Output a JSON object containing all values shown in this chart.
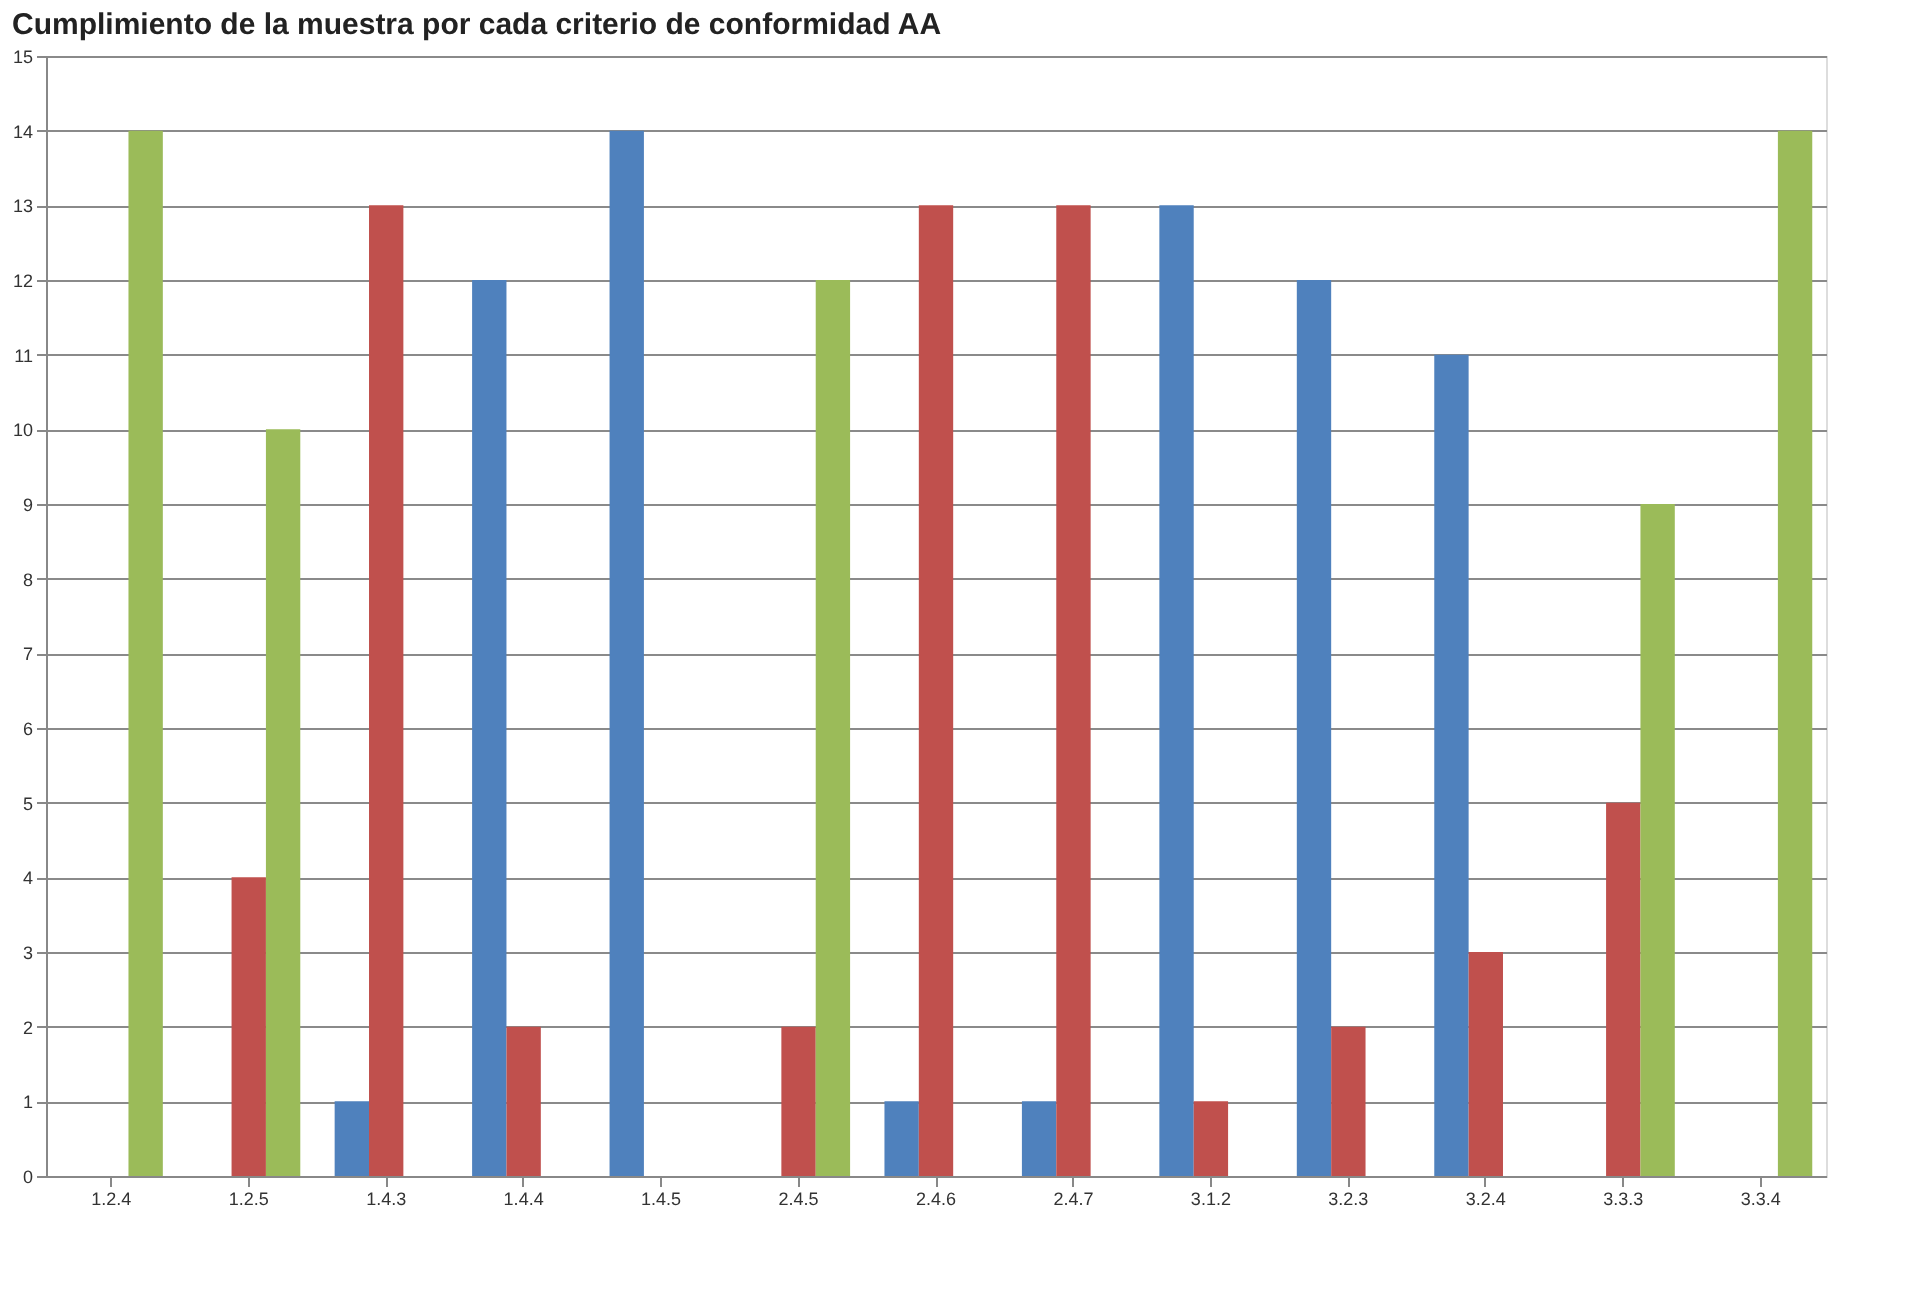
{
  "chart_data": {
    "type": "bar",
    "title": "Cumplimiento de la muestra por cada criterio de conformidad AA",
    "categories": [
      "1.2.4",
      "1.2.5",
      "1.4.3",
      "1.4.4",
      "1.4.5",
      "2.4.5",
      "2.4.6",
      "2.4.7",
      "3.1.2",
      "3.2.3",
      "3.2.4",
      "3.3.3",
      "3.3.4"
    ],
    "series": [
      {
        "color": "#4f81bd",
        "values": [
          0,
          0,
          1,
          12,
          14,
          0,
          1,
          1,
          13,
          12,
          11,
          0,
          0
        ]
      },
      {
        "color": "#c0504d",
        "values": [
          0,
          4,
          13,
          2,
          0,
          2,
          13,
          13,
          1,
          2,
          3,
          5,
          0
        ]
      },
      {
        "color": "#9bbb59",
        "values": [
          14,
          10,
          0,
          0,
          0,
          12,
          0,
          0,
          0,
          0,
          0,
          9,
          14
        ]
      }
    ],
    "ylim": [
      0,
      15
    ],
    "yticks": [
      0,
      1,
      2,
      3,
      4,
      5,
      6,
      7,
      8,
      9,
      10,
      11,
      12,
      13,
      14,
      15
    ],
    "grid": "y",
    "legend": false
  }
}
